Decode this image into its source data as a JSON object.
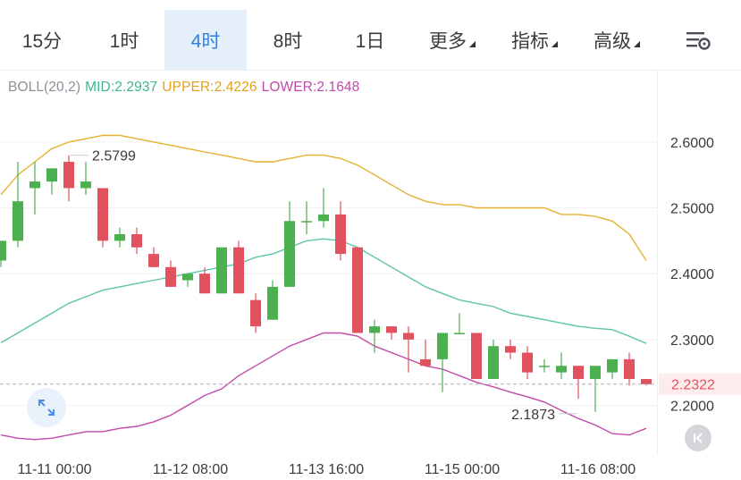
{
  "tabs": [
    {
      "label": "15分",
      "active": false
    },
    {
      "label": "1时",
      "active": false
    },
    {
      "label": "4时",
      "active": true
    },
    {
      "label": "8时",
      "active": false
    },
    {
      "label": "1日",
      "active": false
    },
    {
      "label": "更多",
      "active": false,
      "dropdown": true
    },
    {
      "label": "指标",
      "active": false,
      "dropdown": true
    },
    {
      "label": "高级",
      "active": false,
      "dropdown": true
    }
  ],
  "icons": {
    "settings": "chart-settings-icon",
    "expand": "expand-arrows-icon",
    "back": "skip-back-icon"
  },
  "colors": {
    "up": "#4caf50",
    "down": "#e2515e",
    "mid": "#5cc4a8",
    "upper": "#e5b02e",
    "lower": "#c04aa8",
    "price_line": "#a9aeb5",
    "price_tag": "#e2515e",
    "accent": "#2f7fe0"
  },
  "legend": {
    "name": "BOLL(20,2)",
    "mid": "MID:2.2937",
    "upper": "UPPER:2.4226",
    "lower": "LOWER:2.1648"
  },
  "chart_data": {
    "type": "candlestick",
    "interval": "4h",
    "ylim": [
      2.13,
      2.68
    ],
    "y_ticks": [
      "2.6000",
      "2.5000",
      "2.4000",
      "2.3000",
      "2.2000"
    ],
    "y_tick_values": [
      2.6,
      2.5,
      2.4,
      2.3,
      2.2
    ],
    "x_tick_labels": [
      "11-11 00:00",
      "11-12 08:00",
      "11-13 16:00",
      "11-15 00:00",
      "11-16 08:00"
    ],
    "x_tick_indices": [
      3,
      11,
      19,
      27,
      35
    ],
    "current_price": "2.2322",
    "current_price_value": 2.2322,
    "annotations": [
      {
        "text": "2.5799",
        "value": 2.5799,
        "index": 4,
        "kind": "high"
      },
      {
        "text": "2.1873",
        "value": 2.1873,
        "index": 34,
        "kind": "low"
      }
    ],
    "candles": [
      {
        "o": 2.42,
        "h": 2.45,
        "l": 2.41,
        "c": 2.45
      },
      {
        "o": 2.45,
        "h": 2.57,
        "l": 2.44,
        "c": 2.51
      },
      {
        "o": 2.53,
        "h": 2.57,
        "l": 2.49,
        "c": 2.54
      },
      {
        "o": 2.54,
        "h": 2.56,
        "l": 2.52,
        "c": 2.56
      },
      {
        "o": 2.57,
        "h": 2.58,
        "l": 2.51,
        "c": 2.53
      },
      {
        "o": 2.53,
        "h": 2.57,
        "l": 2.52,
        "c": 2.54
      },
      {
        "o": 2.53,
        "h": 2.53,
        "l": 2.44,
        "c": 2.45
      },
      {
        "o": 2.45,
        "h": 2.47,
        "l": 2.44,
        "c": 2.46
      },
      {
        "o": 2.46,
        "h": 2.47,
        "l": 2.43,
        "c": 2.44
      },
      {
        "o": 2.43,
        "h": 2.44,
        "l": 2.41,
        "c": 2.41
      },
      {
        "o": 2.41,
        "h": 2.42,
        "l": 2.38,
        "c": 2.38
      },
      {
        "o": 2.39,
        "h": 2.4,
        "l": 2.38,
        "c": 2.4
      },
      {
        "o": 2.4,
        "h": 2.41,
        "l": 2.37,
        "c": 2.37
      },
      {
        "o": 2.37,
        "h": 2.44,
        "l": 2.37,
        "c": 2.44
      },
      {
        "o": 2.44,
        "h": 2.45,
        "l": 2.37,
        "c": 2.37
      },
      {
        "o": 2.36,
        "h": 2.37,
        "l": 2.31,
        "c": 2.32
      },
      {
        "o": 2.33,
        "h": 2.39,
        "l": 2.33,
        "c": 2.38
      },
      {
        "o": 2.38,
        "h": 2.51,
        "l": 2.38,
        "c": 2.48
      },
      {
        "o": 2.48,
        "h": 2.51,
        "l": 2.46,
        "c": 2.48
      },
      {
        "o": 2.48,
        "h": 2.53,
        "l": 2.47,
        "c": 2.49
      },
      {
        "o": 2.49,
        "h": 2.51,
        "l": 2.42,
        "c": 2.43
      },
      {
        "o": 2.44,
        "h": 2.44,
        "l": 2.31,
        "c": 2.31
      },
      {
        "o": 2.31,
        "h": 2.33,
        "l": 2.28,
        "c": 2.32
      },
      {
        "o": 2.32,
        "h": 2.32,
        "l": 2.3,
        "c": 2.31
      },
      {
        "o": 2.31,
        "h": 2.32,
        "l": 2.25,
        "c": 2.3
      },
      {
        "o": 2.27,
        "h": 2.3,
        "l": 2.26,
        "c": 2.26
      },
      {
        "o": 2.27,
        "h": 2.31,
        "l": 2.22,
        "c": 2.31
      },
      {
        "o": 2.31,
        "h": 2.34,
        "l": 2.31,
        "c": 2.31
      },
      {
        "o": 2.31,
        "h": 2.31,
        "l": 2.24,
        "c": 2.24
      },
      {
        "o": 2.24,
        "h": 2.3,
        "l": 2.24,
        "c": 2.29
      },
      {
        "o": 2.29,
        "h": 2.3,
        "l": 2.27,
        "c": 2.28
      },
      {
        "o": 2.28,
        "h": 2.29,
        "l": 2.24,
        "c": 2.25
      },
      {
        "o": 2.26,
        "h": 2.27,
        "l": 2.25,
        "c": 2.26
      },
      {
        "o": 2.25,
        "h": 2.28,
        "l": 2.24,
        "c": 2.26
      },
      {
        "o": 2.26,
        "h": 2.26,
        "l": 2.21,
        "c": 2.24
      },
      {
        "o": 2.24,
        "h": 2.26,
        "l": 2.19,
        "c": 2.26
      },
      {
        "o": 2.25,
        "h": 2.27,
        "l": 2.24,
        "c": 2.27
      },
      {
        "o": 2.27,
        "h": 2.28,
        "l": 2.23,
        "c": 2.24
      },
      {
        "o": 2.24,
        "h": 2.24,
        "l": 2.23,
        "c": 2.232
      }
    ],
    "series": [
      {
        "name": "UPPER",
        "values": [
          2.52,
          2.55,
          2.57,
          2.59,
          2.6,
          2.605,
          2.61,
          2.61,
          2.605,
          2.6,
          2.595,
          2.59,
          2.585,
          2.58,
          2.575,
          2.57,
          2.57,
          2.575,
          2.58,
          2.58,
          2.575,
          2.565,
          2.55,
          2.535,
          2.52,
          2.51,
          2.505,
          2.505,
          2.5,
          2.5,
          2.5,
          2.5,
          2.5,
          2.49,
          2.49,
          2.487,
          2.48,
          2.46,
          2.42
        ]
      },
      {
        "name": "MID",
        "values": [
          2.295,
          2.31,
          2.325,
          2.34,
          2.355,
          2.365,
          2.375,
          2.38,
          2.385,
          2.39,
          2.395,
          2.4,
          2.405,
          2.41,
          2.415,
          2.425,
          2.43,
          2.44,
          2.45,
          2.453,
          2.45,
          2.44,
          2.425,
          2.41,
          2.395,
          2.38,
          2.37,
          2.36,
          2.355,
          2.35,
          2.34,
          2.335,
          2.33,
          2.325,
          2.32,
          2.317,
          2.315,
          2.305,
          2.294
        ]
      },
      {
        "name": "LOWER",
        "values": [
          2.155,
          2.15,
          2.148,
          2.15,
          2.155,
          2.16,
          2.16,
          2.165,
          2.168,
          2.175,
          2.185,
          2.2,
          2.215,
          2.225,
          2.245,
          2.26,
          2.275,
          2.29,
          2.3,
          2.31,
          2.31,
          2.305,
          2.29,
          2.28,
          2.27,
          2.26,
          2.255,
          2.245,
          2.235,
          2.228,
          2.22,
          2.213,
          2.205,
          2.192,
          2.18,
          2.17,
          2.157,
          2.155,
          2.165
        ]
      }
    ]
  }
}
